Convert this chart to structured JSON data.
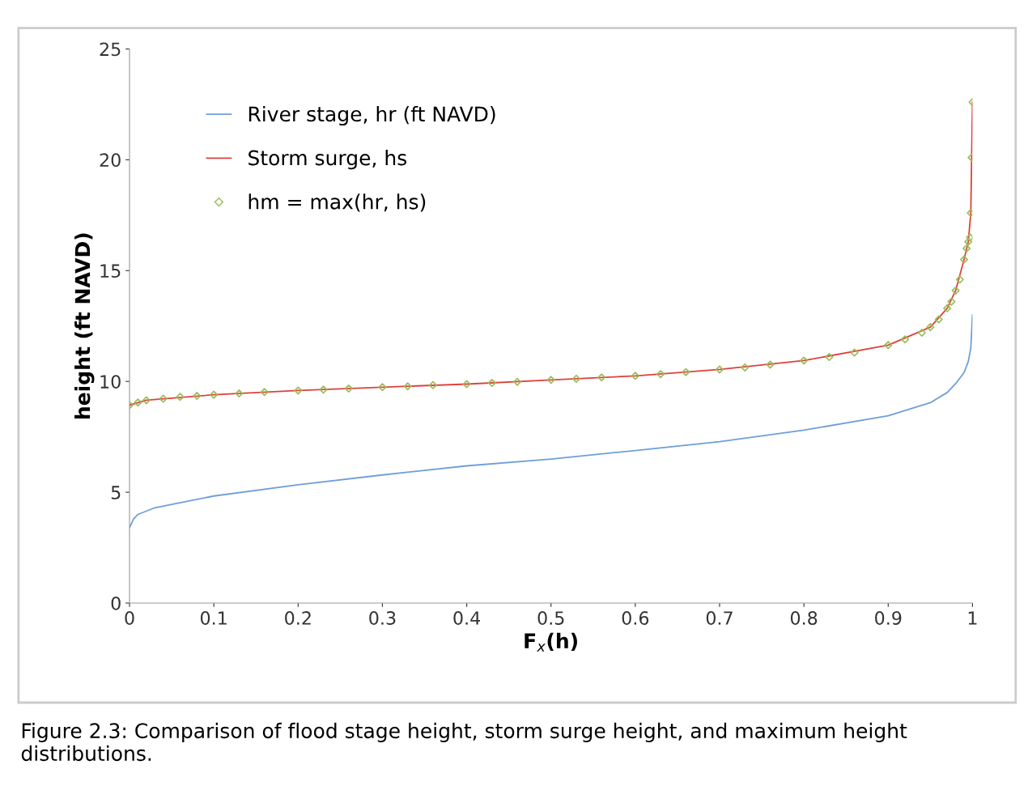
{
  "chart_data": {
    "type": "line",
    "xlabel": "F$_{x}$(h)",
    "ylabel": "height (ft NAVD)",
    "xlim": [
      0,
      1
    ],
    "ylim": [
      0,
      25
    ],
    "xticks": [
      0,
      0.1,
      0.2,
      0.3,
      0.4,
      0.5,
      0.6,
      0.7,
      0.8,
      0.9,
      1
    ],
    "yticks": [
      0,
      5,
      10,
      15,
      20,
      25
    ],
    "grid": false,
    "legend": "top left",
    "series": [
      {
        "name": "River stage, hr (ft NAVD)",
        "color": "#6f9fd8",
        "marker": "none",
        "x": [
          0,
          0.005,
          0.01,
          0.03,
          0.05,
          0.1,
          0.2,
          0.3,
          0.4,
          0.5,
          0.6,
          0.7,
          0.8,
          0.9,
          0.95,
          0.97,
          0.98,
          0.99,
          0.995,
          0.998,
          1
        ],
        "values": [
          3.4,
          3.8,
          4.0,
          4.3,
          4.45,
          4.83,
          5.34,
          5.78,
          6.19,
          6.5,
          6.88,
          7.28,
          7.8,
          8.45,
          9.04,
          9.5,
          9.9,
          10.4,
          10.9,
          11.5,
          13.0
        ]
      },
      {
        "name": "Storm surge, hs",
        "color": "#e0403a",
        "marker": "none",
        "x": [
          0,
          0.02,
          0.1,
          0.2,
          0.3,
          0.4,
          0.5,
          0.6,
          0.7,
          0.8,
          0.9,
          0.95,
          0.97,
          0.98,
          0.99,
          0.995,
          0.998,
          0.999,
          1
        ],
        "values": [
          8.93,
          9.15,
          9.4,
          9.59,
          9.74,
          9.88,
          10.07,
          10.25,
          10.54,
          10.94,
          11.64,
          12.45,
          13.3,
          14.1,
          15.5,
          16.3,
          17.6,
          20.1,
          22.6
        ]
      },
      {
        "name": "hm = max(hr, hs)",
        "color": "#9bbb59",
        "type": "scatter",
        "marker": "diamond",
        "x": [
          0,
          0.01,
          0.02,
          0.04,
          0.06,
          0.08,
          0.1,
          0.13,
          0.16,
          0.2,
          0.23,
          0.26,
          0.3,
          0.33,
          0.36,
          0.4,
          0.43,
          0.46,
          0.5,
          0.53,
          0.56,
          0.6,
          0.63,
          0.66,
          0.7,
          0.73,
          0.76,
          0.8,
          0.83,
          0.86,
          0.9,
          0.92,
          0.94,
          0.95,
          0.96,
          0.97,
          0.975,
          0.98,
          0.985,
          0.99,
          0.993,
          0.995,
          0.997,
          0.998,
          0.999,
          1
        ],
        "values": [
          8.93,
          9.05,
          9.15,
          9.22,
          9.3,
          9.35,
          9.4,
          9.46,
          9.52,
          9.59,
          9.63,
          9.68,
          9.74,
          9.78,
          9.83,
          9.88,
          9.93,
          9.98,
          10.07,
          10.12,
          10.18,
          10.25,
          10.33,
          10.42,
          10.54,
          10.63,
          10.76,
          10.94,
          11.1,
          11.3,
          11.64,
          11.9,
          12.2,
          12.45,
          12.8,
          13.3,
          13.6,
          14.1,
          14.6,
          15.5,
          16.0,
          16.3,
          16.5,
          17.6,
          20.1,
          22.6
        ]
      }
    ],
    "annotations": [
      "Figure 2.3: Comparison of flood stage height, storm surge height, and maximum height distributions."
    ]
  }
}
